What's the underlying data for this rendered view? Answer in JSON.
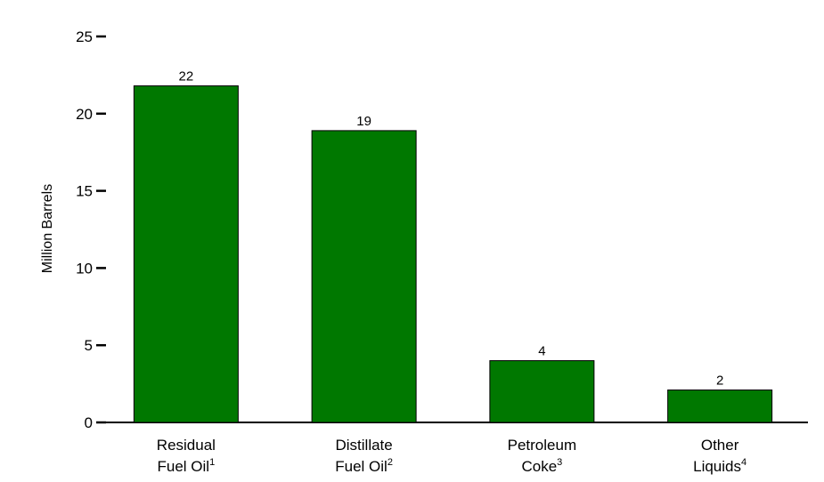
{
  "chart_data": {
    "type": "bar",
    "title": "",
    "xlabel": "",
    "ylabel": "Million Barrels",
    "ylim": [
      0,
      25
    ],
    "yticks": [
      0,
      5,
      10,
      15,
      20,
      25
    ],
    "ytick_labels": [
      "0",
      "5",
      "10",
      "15",
      "20",
      "25"
    ],
    "categories": [
      {
        "line1": "Residual",
        "line2": "Fuel Oil",
        "sup": "1"
      },
      {
        "line1": "Distillate",
        "line2": "Fuel Oil",
        "sup": "2"
      },
      {
        "line1": "Petroleum",
        "line2": "Coke",
        "sup": "3"
      },
      {
        "line1": "Other",
        "line2": "Liquids",
        "sup": "4"
      }
    ],
    "values": [
      21.8,
      18.9,
      4.0,
      2.1
    ],
    "data_labels": [
      "22",
      "19",
      "4",
      "2"
    ],
    "bar_color": "#007800",
    "grid": false,
    "legend": "none"
  }
}
